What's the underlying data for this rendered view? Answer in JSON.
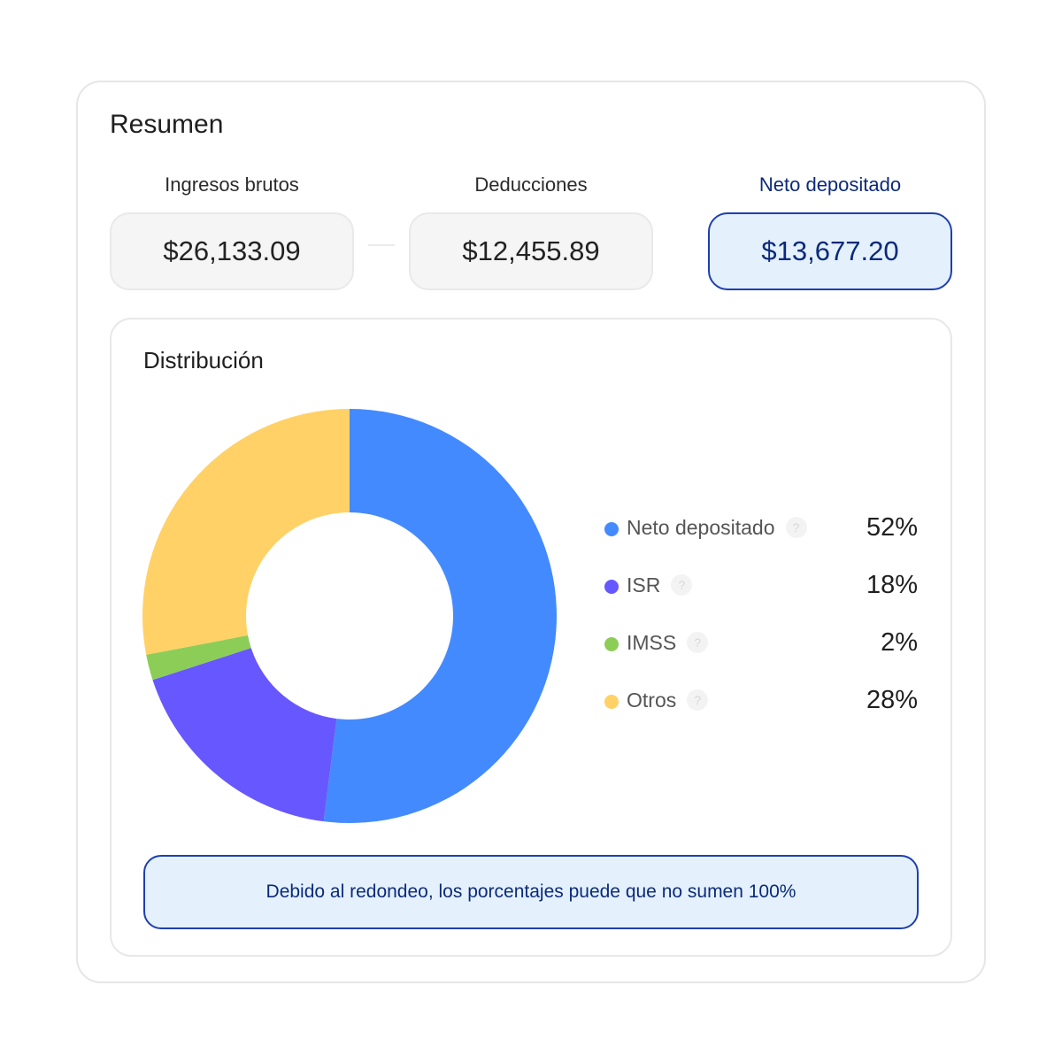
{
  "summary": {
    "title": "Resumen",
    "gross": {
      "label": "Ingresos brutos",
      "value": "$26,133.09"
    },
    "deductions": {
      "label": "Deducciones",
      "value": "$12,455.89"
    },
    "net": {
      "label": "Neto depositado",
      "value": "$13,677.20"
    }
  },
  "distribution": {
    "title": "Distribución",
    "note": "Debido al redondeo, los porcentajes puede que no sumen 100%",
    "help_glyph": "?"
  },
  "chart_data": {
    "type": "pie",
    "donut": true,
    "legend_position": "right",
    "categories": [
      "Neto depositado",
      "ISR",
      "IMSS",
      "Otros"
    ],
    "values": [
      52,
      18,
      2,
      28
    ],
    "value_labels": [
      "52%",
      "18%",
      "2%",
      "28%"
    ],
    "colors": [
      "#448aff",
      "#6757ff",
      "#8ccd57",
      "#ffd166"
    ]
  }
}
